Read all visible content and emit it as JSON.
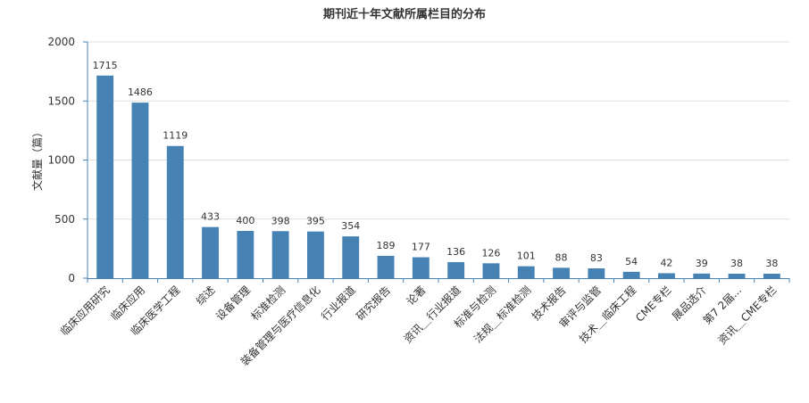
{
  "chart_data": {
    "type": "bar",
    "title": "期刊近十年文献所属栏目的分布",
    "xlabel": "",
    "ylabel": "文献量（篇）",
    "ylim": [
      0,
      2000
    ],
    "yticks": [
      0,
      500,
      1000,
      1500,
      2000
    ],
    "grid": true,
    "bar_color": "#4682b4",
    "categories": [
      "临床应用研究",
      "临床应用",
      "临床医学工程",
      "综述",
      "设备管理",
      "标准检测",
      "装备管理与医疗信息化",
      "行业报道",
      "研究报告",
      "论著",
      "资讯＿行业报道",
      "标准与检测",
      "法规＿标准检测",
      "技术报告",
      "审评与监管",
      "技术＿临床工程",
      "CME专栏",
      "展品选介",
      "第7 2届...",
      "资讯＿CME专栏"
    ],
    "values": [
      1715,
      1486,
      1119,
      433,
      400,
      398,
      395,
      354,
      189,
      177,
      136,
      126,
      101,
      88,
      83,
      54,
      42,
      39,
      38,
      38
    ]
  }
}
